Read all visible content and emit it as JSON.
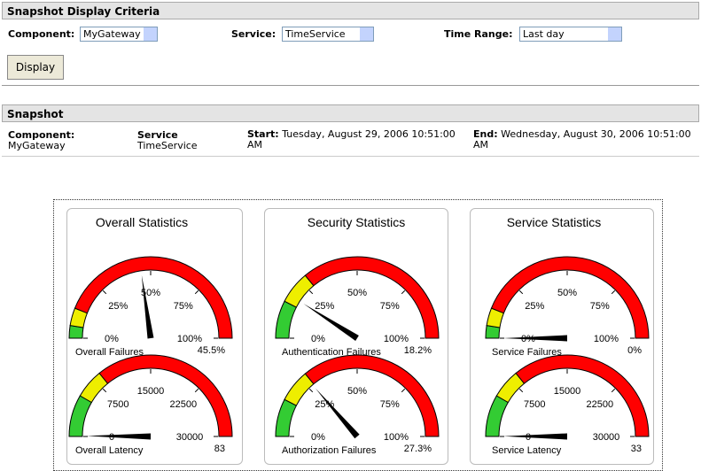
{
  "criteria": {
    "title": "Snapshot Display Criteria",
    "component_label": "Component:",
    "component_value": "MyGateway",
    "service_label": "Service:",
    "service_value": "TimeService",
    "range_label": "Time Range:",
    "range_value": "Last day",
    "button": "Display"
  },
  "snapshot": {
    "title": "Snapshot",
    "component_label": "Component:",
    "component_value": "MyGateway",
    "service_label": "Service",
    "service_value": "TimeService",
    "start_label": "Start:",
    "start_value": "Tuesday, August 29, 2006 10:51:00 AM",
    "end_label": "End:",
    "end_value": "Wednesday, August 30, 2006 10:51:00 AM"
  },
  "panels": [
    {
      "title": "Overall Statistics",
      "gauges": [
        {
          "label": "Overall Failures",
          "value": 45.5,
          "value_label": "45.5%",
          "min": 0,
          "max": 100,
          "ticks": [
            {
              "value": 0,
              "label": "0%"
            },
            {
              "value": 25,
              "label": "25%"
            },
            {
              "value": 50,
              "label": "50%"
            },
            {
              "value": 75,
              "label": "75%"
            },
            {
              "value": 100,
              "label": "100%"
            }
          ],
          "zones": [
            {
              "to": 5,
              "color": "#33cc33"
            },
            {
              "to": 12,
              "color": "#eeee00"
            },
            {
              "to": 100,
              "color": "#ff0000"
            }
          ]
        },
        {
          "label": "Overall Latency",
          "value": 83,
          "min": 0,
          "max": 30000,
          "ticks": [
            0,
            7500,
            15000,
            22500,
            30000
          ],
          "zones": [
            {
              "to": 5000,
              "color": "#33cc33"
            },
            {
              "to": 8500,
              "color": "#eeee00"
            },
            {
              "to": 30000,
              "color": "#ff0000"
            }
          ]
        }
      ]
    },
    {
      "title": "Security Statistics",
      "gauges": [
        {
          "label": "Authentication Failures",
          "value": 18.2,
          "value_label": "18.2%",
          "min": 0,
          "max": 100,
          "ticks": [
            {
              "value": 0,
              "label": "0%"
            },
            {
              "value": 25,
              "label": "25%"
            },
            {
              "value": 50,
              "label": "50%"
            },
            {
              "value": 75,
              "label": "75%"
            },
            {
              "value": 100,
              "label": "100%"
            }
          ],
          "zones": [
            {
              "to": 15,
              "color": "#33cc33"
            },
            {
              "to": 28,
              "color": "#eeee00"
            },
            {
              "to": 100,
              "color": "#ff0000"
            }
          ]
        },
        {
          "label": "Authorization Failures",
          "value": 27.3,
          "value_label": "27.3%",
          "min": 0,
          "max": 100,
          "ticks": [
            {
              "value": 0,
              "label": "0%"
            },
            {
              "value": 25,
              "label": "25%"
            },
            {
              "value": 50,
              "label": "50%"
            },
            {
              "value": 75,
              "label": "75%"
            },
            {
              "value": 100,
              "label": "100%"
            }
          ],
          "zones": [
            {
              "to": 15,
              "color": "#33cc33"
            },
            {
              "to": 28,
              "color": "#eeee00"
            },
            {
              "to": 100,
              "color": "#ff0000"
            }
          ]
        }
      ]
    },
    {
      "title": "Service Statistics",
      "gauges": [
        {
          "label": "Service Failures",
          "value": 0,
          "value_label": "0%",
          "min": 0,
          "max": 100,
          "ticks": [
            {
              "value": 0,
              "label": "0%"
            },
            {
              "value": 25,
              "label": "25%"
            },
            {
              "value": 50,
              "label": "50%"
            },
            {
              "value": 75,
              "label": "75%"
            },
            {
              "value": 100,
              "label": "100%"
            }
          ],
          "zones": [
            {
              "to": 5,
              "color": "#33cc33"
            },
            {
              "to": 12,
              "color": "#eeee00"
            },
            {
              "to": 100,
              "color": "#ff0000"
            }
          ]
        },
        {
          "label": "Service Latency",
          "value": 33,
          "min": 0,
          "max": 30000,
          "ticks": [
            0,
            7500,
            15000,
            22500,
            30000
          ],
          "zones": [
            {
              "to": 5000,
              "color": "#33cc33"
            },
            {
              "to": 8500,
              "color": "#eeee00"
            },
            {
              "to": 30000,
              "color": "#ff0000"
            }
          ]
        }
      ]
    }
  ]
}
